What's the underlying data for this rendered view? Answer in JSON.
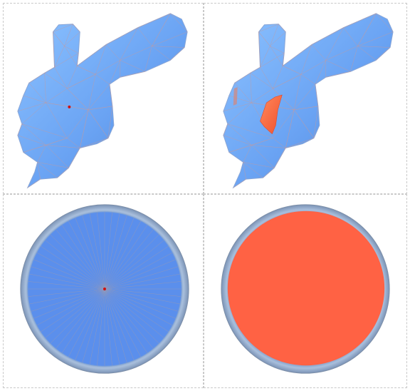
{
  "figure": {
    "panels": [
      {
        "id": "bone-mesh-seed",
        "shape": "bone",
        "highlight": "seed-point"
      },
      {
        "id": "bone-mesh-patch",
        "shape": "bone",
        "highlight": "patch"
      },
      {
        "id": "disk-mesh-seed",
        "shape": "disk",
        "highlight": "seed-point"
      },
      {
        "id": "disk-mesh-filled",
        "shape": "disk",
        "highlight": "full-fill"
      }
    ],
    "colors": {
      "mesh_fill": "#6aa3f3",
      "mesh_edge": "#c79a9a",
      "disk_fill": "#5b8fec",
      "rim": "#8fa7c6",
      "highlight": "#ff6244",
      "seed": "#d01010",
      "panel_border": "#c9c9c9"
    }
  }
}
